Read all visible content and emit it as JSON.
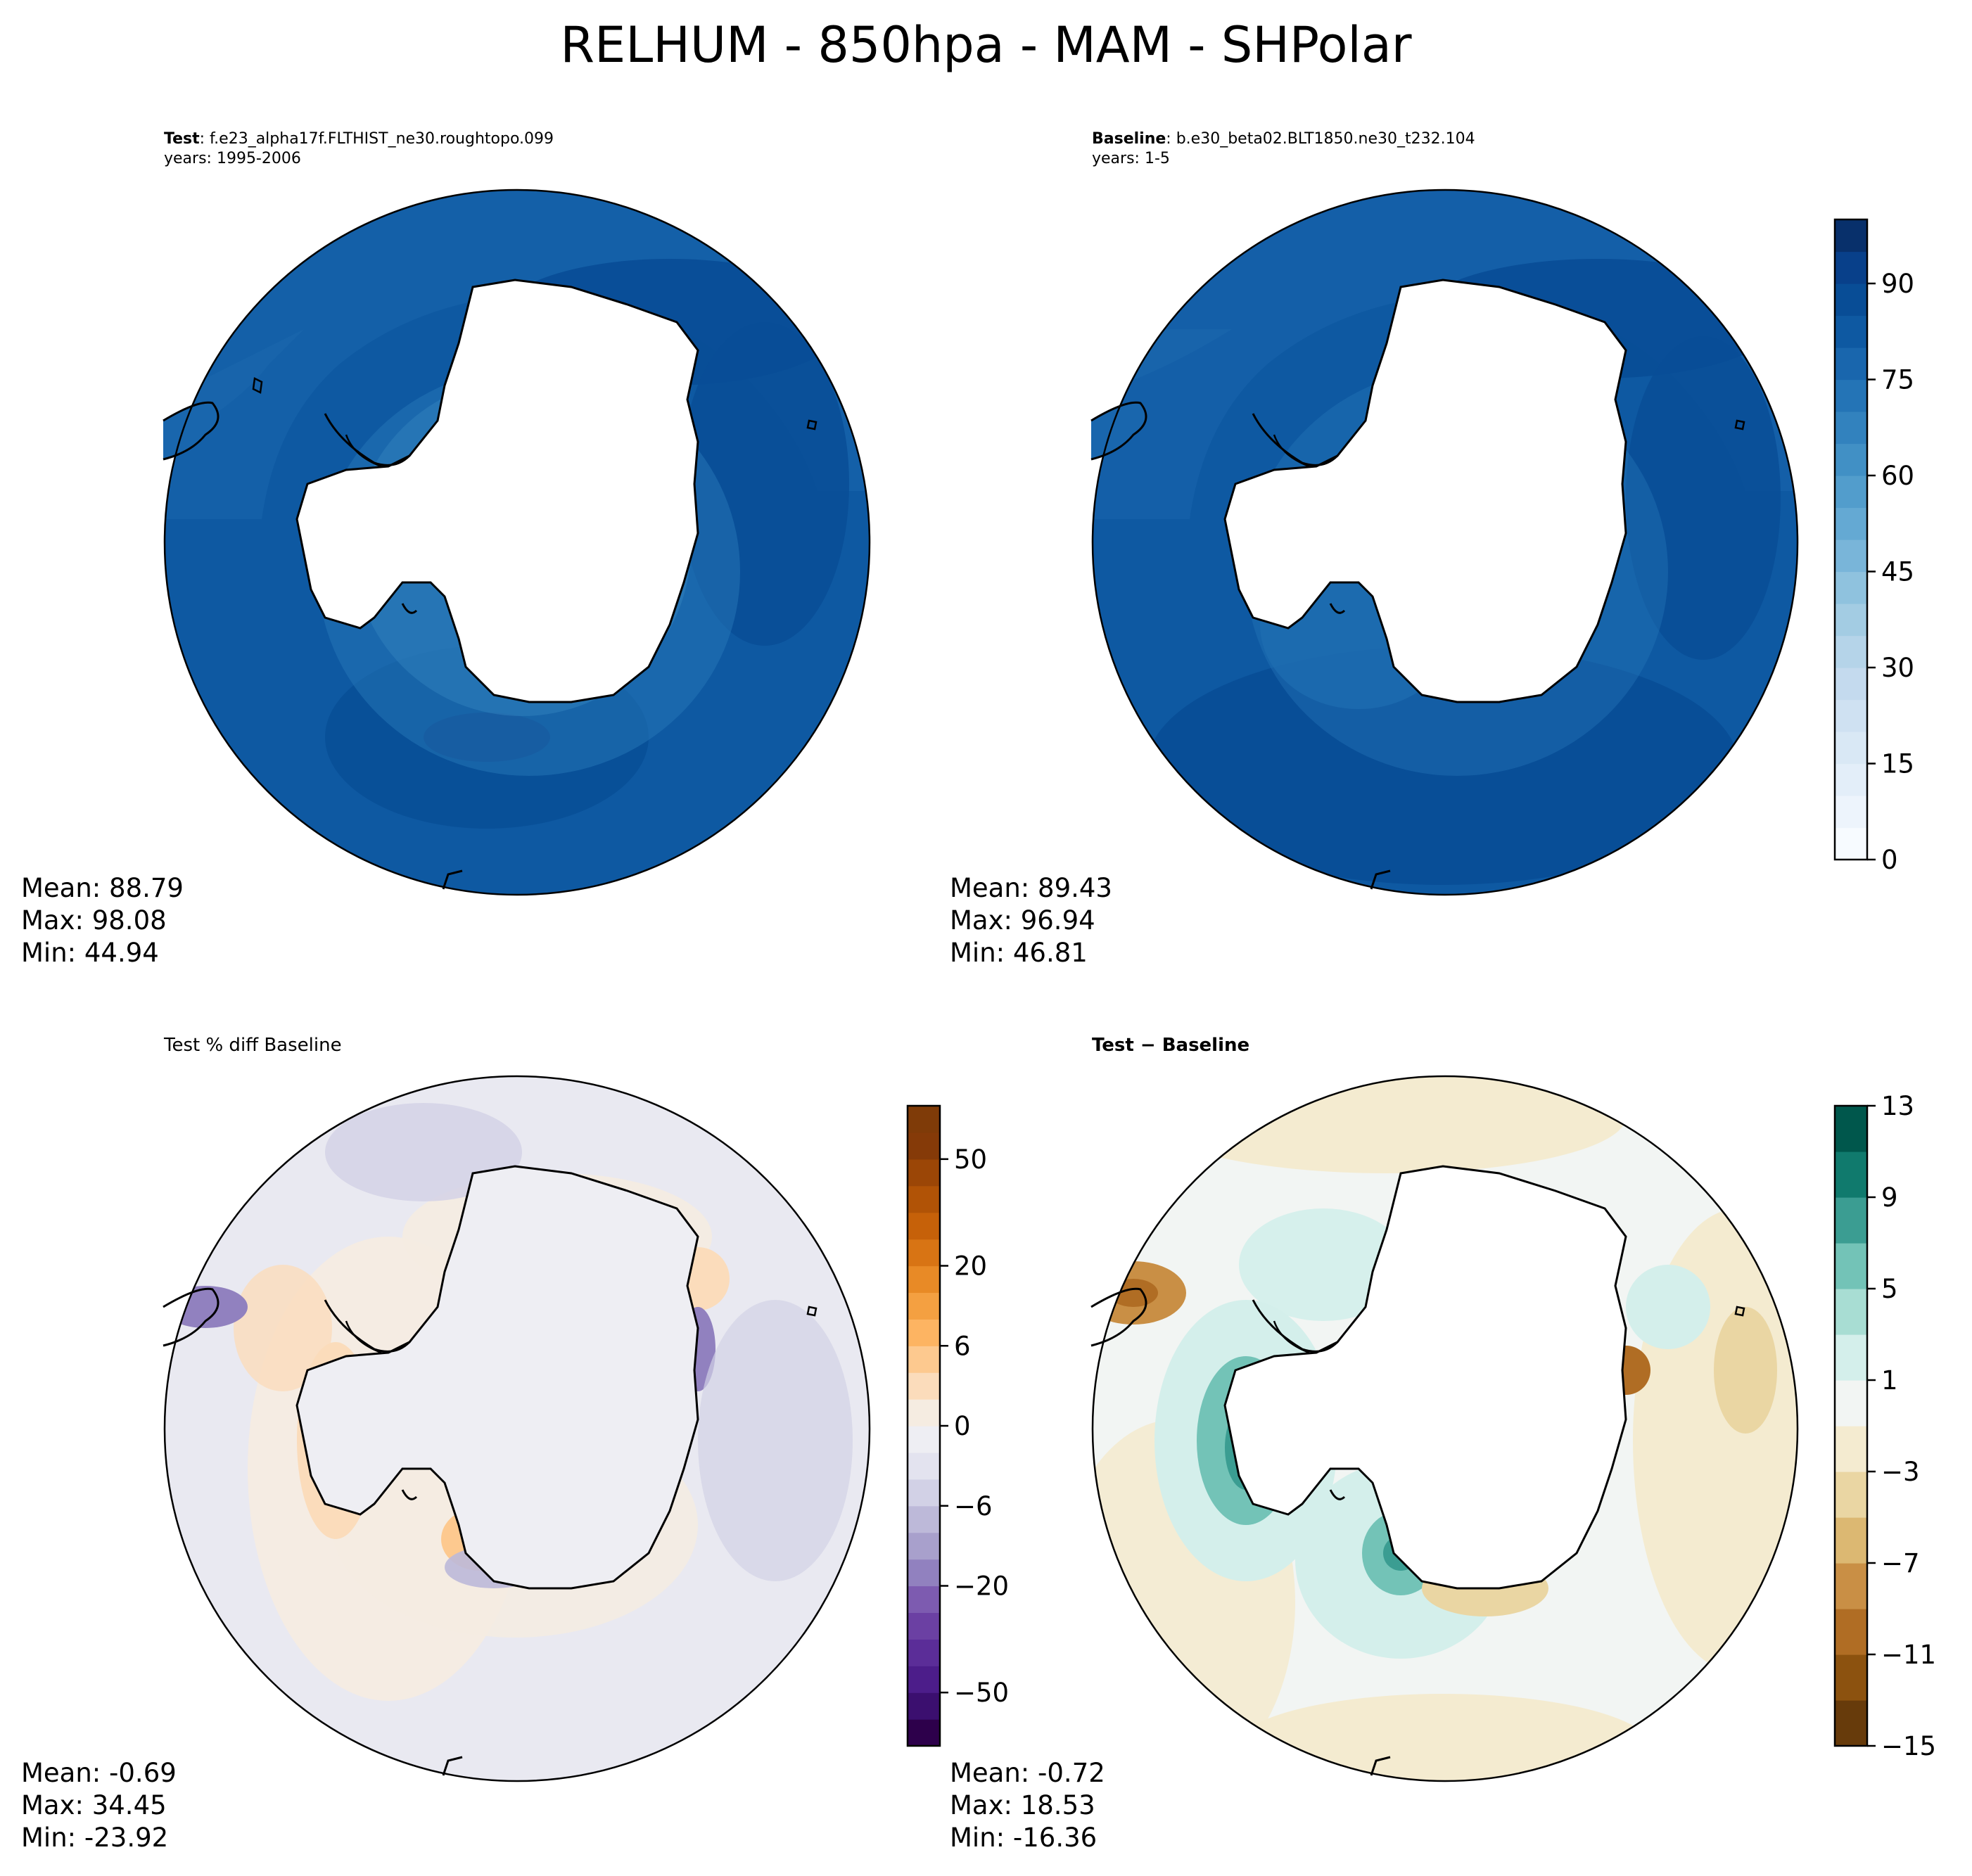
{
  "figure": {
    "title": "RELHUM - 850hpa - MAM - SHPolar"
  },
  "panels": {
    "test": {
      "label_bold": "Test",
      "label_rest": ": f.e23_alpha17f.FLTHIST_ne30.roughtopo.099",
      "years": "years: 1995-2006",
      "mean": "Mean: 88.79",
      "max": "Max: 98.08",
      "min": "Min: 44.94"
    },
    "baseline": {
      "label_bold": "Baseline",
      "label_rest": ": b.e30_beta02.BLT1850.ne30_t232.104",
      "years": "years: 1-5",
      "mean": "Mean: 89.43",
      "max": "Max: 96.94",
      "min": "Min: 46.81"
    },
    "pctdiff": {
      "title": "Test % diff Baseline",
      "mean": "Mean: -0.69",
      "max": "Max: 34.45",
      "min": "Min: -23.92"
    },
    "diff": {
      "title": "Test − Baseline",
      "mean": "Mean: -0.72",
      "max": "Max: 18.53",
      "min": "Min: -16.36"
    }
  },
  "chart_data": [
    {
      "type": "heatmap",
      "name": "Test",
      "projection": "south-polar-stereographic",
      "stats": {
        "mean": 88.79,
        "max": 98.08,
        "min": 44.94
      },
      "colorbar": "shared-1"
    },
    {
      "type": "heatmap",
      "name": "Baseline",
      "projection": "south-polar-stereographic",
      "stats": {
        "mean": 89.43,
        "max": 96.94,
        "min": 46.81
      },
      "colorbar": {
        "colormap": "Blues",
        "range": [
          0,
          100
        ],
        "levels": [
          0,
          5,
          10,
          15,
          20,
          25,
          30,
          35,
          40,
          45,
          50,
          55,
          60,
          65,
          70,
          75,
          80,
          85,
          90,
          95,
          100
        ],
        "ticks": [
          "0",
          "15",
          "30",
          "45",
          "60",
          "75",
          "90"
        ],
        "tick_values": [
          0,
          15,
          30,
          45,
          60,
          75,
          90
        ],
        "colors": [
          "#f7fbff",
          "#edf4fc",
          "#e3eef9",
          "#d9e8f5",
          "#cfe1f2",
          "#c4daee",
          "#b5d4e9",
          "#a3cce3",
          "#8fc2de",
          "#79b5d9",
          "#64a9d3",
          "#529dcc",
          "#4190c5",
          "#3282be",
          "#2474b6",
          "#1966ad",
          "#0e59a2",
          "#084d96",
          "#08408a",
          "#08306b"
        ]
      }
    },
    {
      "type": "heatmap",
      "name": "Test % diff Baseline",
      "projection": "south-polar-stereographic",
      "stats": {
        "mean": -0.69,
        "max": 34.45,
        "min": -23.92
      },
      "colorbar": {
        "colormap": "PuOr_r",
        "ticks": [
          "−50",
          "−20",
          "−6",
          "0",
          "6",
          "20",
          "50"
        ],
        "colors": [
          "#2d004b",
          "#3b0f6f",
          "#4c1d8a",
          "#5b2d98",
          "#6b40a3",
          "#7d5bb0",
          "#9181bf",
          "#a8a0cc",
          "#bdb9d9",
          "#d2d1e6",
          "#e3e3ef",
          "#eeeef3",
          "#f5ece1",
          "#fbdcbb",
          "#fdc98f",
          "#fdb462",
          "#f4a041",
          "#e88a26",
          "#d87414",
          "#c66109",
          "#b15306",
          "#9b4606",
          "#853a08",
          "#7f3b08"
        ],
        "tick_bands": [
          2,
          6,
          9,
          12,
          15,
          18,
          22
        ]
      }
    },
    {
      "type": "heatmap",
      "name": "Test − Baseline",
      "projection": "south-polar-stereographic",
      "stats": {
        "mean": -0.72,
        "max": 18.53,
        "min": -16.36
      },
      "colorbar": {
        "colormap": "BrBG",
        "range": [
          -15,
          13
        ],
        "levels": [
          -15,
          -13,
          -11,
          -9,
          -7,
          -5,
          -3,
          -1,
          1,
          3,
          5,
          7,
          9,
          11,
          13
        ],
        "ticks": [
          "−15",
          "−11",
          "−7",
          "−3",
          "1",
          "5",
          "9",
          "13"
        ],
        "tick_values": [
          -15,
          -11,
          -7,
          -3,
          1,
          5,
          9,
          13
        ],
        "colors": [
          "#673b0b",
          "#8c520f",
          "#b06d24",
          "#c98f45",
          "#dcb872",
          "#ead6a3",
          "#f4ebd0",
          "#f2f5f3",
          "#d4efeb",
          "#a8ddd3",
          "#73c3b7",
          "#3b9d92",
          "#107a6d",
          "#00574c"
        ]
      }
    }
  ]
}
